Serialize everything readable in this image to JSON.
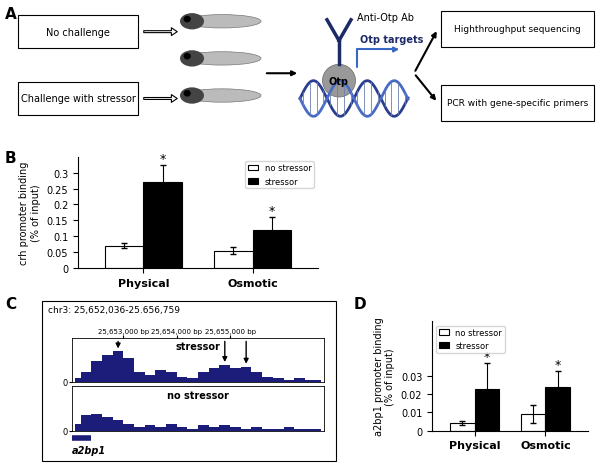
{
  "diagram": {
    "label": "A",
    "inputs": [
      "No challenge",
      "Challenge with stressor"
    ],
    "antibody": "Anti-Otp Ab",
    "protein": "Otp",
    "targets": "Otp targets",
    "outputs": [
      "Highthroughput sequencing",
      "PCR with gene-specific primers"
    ]
  },
  "chart_data": [
    {
      "label": "B",
      "type": "bar",
      "categories": [
        "Physical",
        "Osmotic"
      ],
      "ylabel": "crh promoter binding\n(% of input)",
      "series": [
        {
          "name": "no stressor",
          "color": "#ffffff",
          "values": [
            0.07,
            0.055
          ],
          "errors": [
            0.008,
            0.012
          ]
        },
        {
          "name": "stressor",
          "color": "#000000",
          "values": [
            0.27,
            0.12
          ],
          "errors": [
            0.055,
            0.04
          ]
        }
      ],
      "annotations": [
        {
          "text": "*",
          "category": "Physical",
          "series": "stressor"
        },
        {
          "text": "*",
          "category": "Osmotic",
          "series": "stressor"
        }
      ],
      "ylim": [
        0,
        0.35
      ],
      "yticks": [
        0,
        0.05,
        0.1,
        0.15,
        0.2,
        0.25,
        0.3
      ],
      "legend": "upper right"
    },
    {
      "label": "C",
      "type": "area",
      "title": "chr3: 25,652,036-25.656,759",
      "x": [
        25652100,
        25652300,
        25652500,
        25652700,
        25652900,
        25653100,
        25653300,
        25653500,
        25653700,
        25653900,
        25654100,
        25654300,
        25654500,
        25654700,
        25654900,
        25655100,
        25655300,
        25655500,
        25655700,
        25655900,
        25656100,
        25656300,
        25656500,
        25656700
      ],
      "series": [
        {
          "name": "stressor",
          "color": "#1c1c7a",
          "values": [
            0.1,
            0.3,
            0.6,
            0.8,
            0.9,
            0.7,
            0.3,
            0.2,
            0.35,
            0.3,
            0.15,
            0.1,
            0.3,
            0.4,
            0.5,
            0.4,
            0.45,
            0.3,
            0.15,
            0.1,
            0.05,
            0.1,
            0.05,
            0.05
          ]
        },
        {
          "name": "no stressor",
          "color": "#1c1c7a",
          "values": [
            0.2,
            0.45,
            0.5,
            0.4,
            0.3,
            0.2,
            0.1,
            0.15,
            0.1,
            0.2,
            0.1,
            0.05,
            0.15,
            0.1,
            0.15,
            0.1,
            0.05,
            0.1,
            0.05,
            0.05,
            0.1,
            0.05,
            0.05,
            0.05
          ]
        }
      ],
      "xlim": [
        25652036,
        25656759
      ],
      "xticks": [
        {
          "value": 25653000,
          "label": "25,653,000 bp"
        },
        {
          "value": 25654000,
          "label": "25,654,000 bp"
        },
        {
          "value": 25655000,
          "label": "25,655,000 bp"
        }
      ],
      "ylim": [
        0,
        1.3
      ],
      "yticks": [
        0
      ],
      "arrows": [
        25652900,
        25654900,
        25655300
      ],
      "gene": {
        "name": "a2bp1",
        "start": 25652036,
        "end": 25652400
      }
    },
    {
      "label": "D",
      "type": "bar",
      "categories": [
        "Physical",
        "Osmotic"
      ],
      "ylabel": "a2bp1 promoter binding\n(% of input)",
      "series": [
        {
          "name": "no stressor",
          "color": "#ffffff",
          "values": [
            0.004,
            0.009
          ],
          "errors": [
            0.001,
            0.005
          ]
        },
        {
          "name": "stressor",
          "color": "#000000",
          "values": [
            0.023,
            0.024
          ],
          "errors": [
            0.014,
            0.009
          ]
        }
      ],
      "annotations": [
        {
          "text": "*",
          "category": "Physical",
          "series": "stressor"
        },
        {
          "text": "*",
          "category": "Osmotic",
          "series": "stressor"
        }
      ],
      "ylim": [
        0,
        0.06
      ],
      "yticks": [
        0,
        0.01,
        0.02,
        0.03
      ],
      "legend": "upper left"
    }
  ]
}
